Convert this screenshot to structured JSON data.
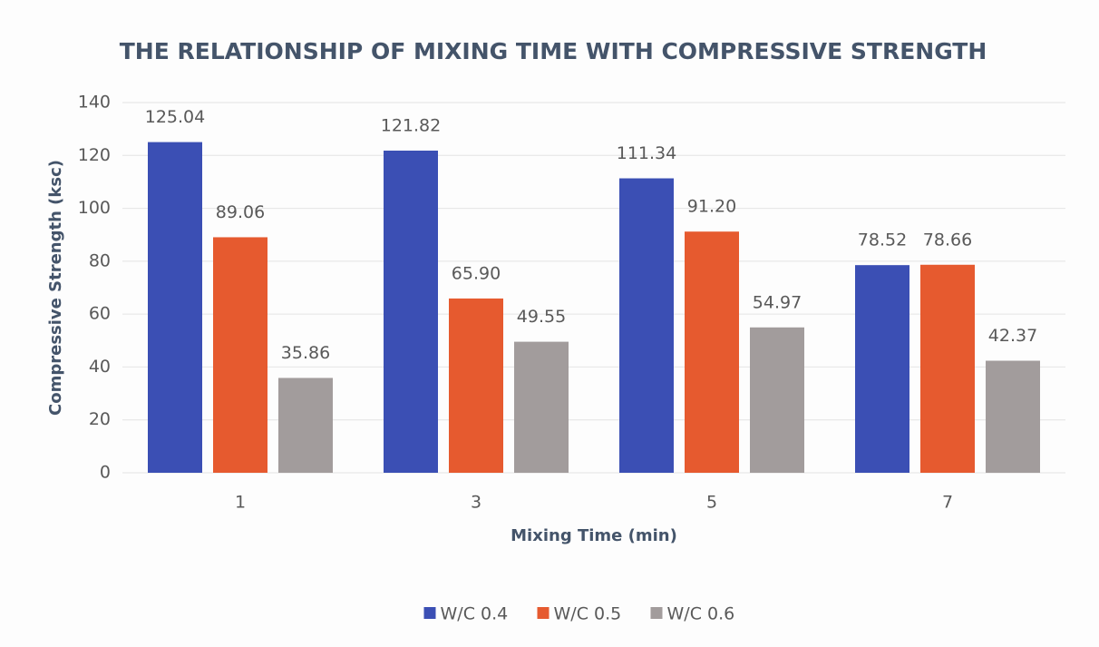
{
  "chart_data": {
    "type": "bar",
    "title": "THE RELATIONSHIP OF MIXING TIME WITH COMPRESSIVE STRENGTH",
    "x_label": "Mixing Time (min)",
    "y_label": "Compressive Strength (ksc)",
    "categories": [
      "1",
      "3",
      "5",
      "7"
    ],
    "series": [
      {
        "name": "W/C 0.4",
        "color": "#3b4fb4",
        "values": [
          125.04,
          121.82,
          111.34,
          78.52
        ],
        "value_labels": [
          "125.04",
          "121.82",
          "111.34",
          "78.52"
        ]
      },
      {
        "name": "W/C 0.5",
        "color": "#e65a2f",
        "values": [
          89.06,
          65.9,
          91.2,
          78.66
        ],
        "value_labels": [
          "89.06",
          "65.90",
          "91.20",
          "78.66"
        ]
      },
      {
        "name": "W/C 0.6",
        "color": "#a29c9c",
        "values": [
          35.86,
          49.55,
          54.97,
          42.37
        ],
        "value_labels": [
          "35.86",
          "49.55",
          "54.97",
          "42.37"
        ]
      }
    ],
    "ylim": [
      0,
      140
    ],
    "yticks": [
      0,
      20,
      40,
      60,
      80,
      100,
      120,
      140
    ],
    "grid": true,
    "legend": "bottom"
  }
}
